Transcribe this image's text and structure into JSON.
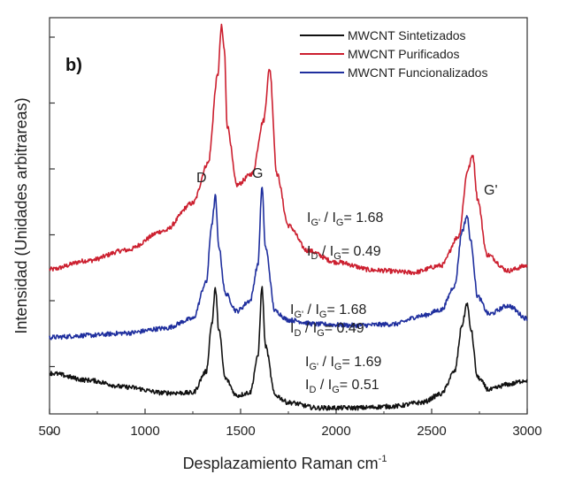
{
  "chart_data": {
    "type": "line",
    "panel_label": "b)",
    "xlabel": "Desplazamiento Raman cm",
    "xlabel_sup": "-1",
    "ylabel": "Intensidad (Unidades arbitrareas)",
    "xlim": [
      500,
      3000
    ],
    "x_ticks": [
      500,
      1000,
      1500,
      2000,
      2500,
      3000
    ],
    "ylim": [
      0,
      1
    ],
    "y_tick_labels_shown": false,
    "legend": {
      "placement": "top-right"
    },
    "series": [
      {
        "name": "MWCNT Sintetizados",
        "color": "#111111",
        "x": [
          500,
          700,
          900,
          1100,
          1250,
          1320,
          1350,
          1368,
          1385,
          1420,
          1480,
          1550,
          1590,
          1612,
          1630,
          1680,
          1750,
          1900,
          2100,
          2300,
          2450,
          2550,
          2620,
          2660,
          2685,
          2705,
          2740,
          2800,
          2900,
          3000
        ],
        "y": [
          0.101,
          0.083,
          0.065,
          0.05,
          0.05,
          0.105,
          0.231,
          0.321,
          0.217,
          0.087,
          0.043,
          0.051,
          0.142,
          0.323,
          0.172,
          0.044,
          0.025,
          0.011,
          0.011,
          0.015,
          0.025,
          0.047,
          0.105,
          0.227,
          0.282,
          0.215,
          0.09,
          0.058,
          0.072,
          0.083
        ]
      },
      {
        "name": "MWCNT Purificados",
        "color": "#cc1f2f",
        "x": [
          500,
          700,
          900,
          1100,
          1250,
          1330,
          1380,
          1400,
          1415,
          1430,
          1480,
          1560,
          1620,
          1652,
          1690,
          1750,
          1850,
          2000,
          2200,
          2400,
          2550,
          2640,
          2690,
          2715,
          2740,
          2790,
          2900,
          3000
        ],
        "y": [
          0.37,
          0.393,
          0.42,
          0.47,
          0.542,
          0.646,
          0.873,
          1.0,
          0.94,
          0.742,
          0.589,
          0.618,
          0.756,
          0.89,
          0.617,
          0.484,
          0.419,
          0.389,
          0.368,
          0.362,
          0.38,
          0.455,
          0.629,
          0.667,
          0.553,
          0.408,
          0.367,
          0.38
        ]
      },
      {
        "name": "MWCNT Funcionalizados",
        "color": "#1f2f9e",
        "x": [
          500,
          700,
          900,
          1100,
          1250,
          1320,
          1350,
          1368,
          1385,
          1420,
          1480,
          1550,
          1590,
          1612,
          1630,
          1680,
          1750,
          1900,
          2100,
          2300,
          2450,
          2550,
          2620,
          2660,
          2685,
          2705,
          2740,
          2800,
          2900,
          3000
        ],
        "y": [
          0.194,
          0.199,
          0.205,
          0.217,
          0.242,
          0.336,
          0.489,
          0.56,
          0.432,
          0.308,
          0.262,
          0.289,
          0.38,
          0.582,
          0.427,
          0.262,
          0.239,
          0.228,
          0.225,
          0.228,
          0.25,
          0.265,
          0.327,
          0.47,
          0.509,
          0.442,
          0.3,
          0.254,
          0.276,
          0.243
        ]
      }
    ],
    "annotations": {
      "peak_D": "D",
      "peak_G": "G",
      "peak_Gp": "G'",
      "ratios_purificados": [
        {
          "numerator": "I",
          "num_sub": "G'",
          "denominator": "I",
          "den_sub": "G",
          "value": "= 1.68"
        },
        {
          "numerator": "I",
          "num_sub": "D",
          "denominator": "I",
          "den_sub": "G",
          "value": "= 0.49"
        }
      ],
      "ratios_funcionalizados": [
        {
          "numerator": "I",
          "num_sub": "G'",
          "denominator": "I",
          "den_sub": "G",
          "value": "= 1.68"
        },
        {
          "numerator": "I",
          "num_sub": "D",
          "denominator": "I",
          "den_sub": "G",
          "value": "= 0.49"
        }
      ],
      "ratios_sintetizados": [
        {
          "numerator": "I",
          "num_sub": "G'",
          "denominator": "I",
          "den_sub": "G",
          "value": "= 1.69"
        },
        {
          "numerator": "I",
          "num_sub": "D",
          "denominator": "I",
          "den_sub": "G",
          "value": "= 0.51"
        }
      ]
    }
  }
}
